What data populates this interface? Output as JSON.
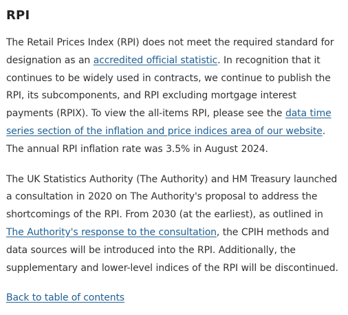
{
  "section": {
    "heading": "RPI"
  },
  "paragraph1": {
    "text_before_link1": "The Retail Prices Index (RPI) does not meet the required standard for designation as an ",
    "link1": "accredited official statistic",
    "text_between": ". In recognition that it continues to be widely used in contracts, we continue to publish the RPI, its subcomponents, and RPI excluding mortgage interest payments (RPIX). To view the all-items RPI, please see the ",
    "link2": "data time series section of the inflation and price indices area of our website",
    "text_after_link2": ". The annual RPI inflation rate was 3.5% in August 2024."
  },
  "paragraph2": {
    "text_before_link": "The UK Statistics Authority (The Authority) and HM Treasury launched a consultation in 2020 on The Authority's proposal to address the shortcomings of the RPI. From 2030 (at the earliest), as outlined in ",
    "link": "The Authority's response to the consultation",
    "text_after_link": ", the CPIH methods and data sources will be introduced into the RPI. Additionally, the supplementary and lower-level indices of the RPI will be discontinued."
  },
  "navigation": {
    "back_to_toc": "Back to table of contents"
  },
  "colors": {
    "text": "#323132",
    "heading": "#222222",
    "link": "#206095",
    "background": "#ffffff"
  }
}
